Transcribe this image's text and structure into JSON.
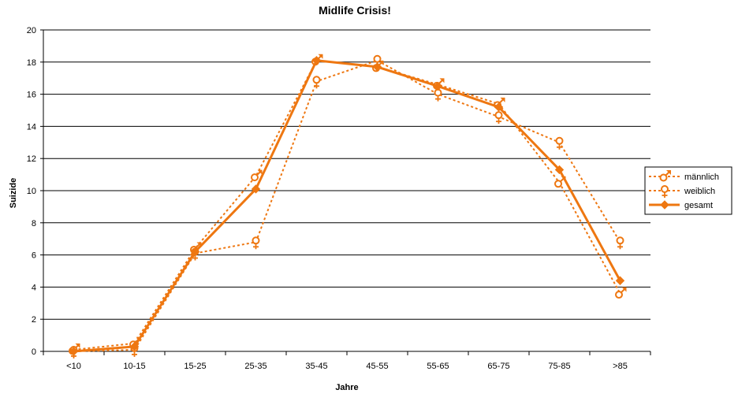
{
  "chart_data": {
    "type": "line",
    "title": "Midlife Crisis!",
    "xlabel": "Jahre",
    "ylabel": "Suizide",
    "categories": [
      "<10",
      "10-15",
      "15-25",
      "25-35",
      "35-45",
      "45-55",
      "55-65",
      "65-75",
      "75-85",
      ">85"
    ],
    "ylim": [
      0,
      20
    ],
    "yticks": [
      0,
      2,
      4,
      6,
      8,
      10,
      12,
      14,
      16,
      18,
      20
    ],
    "grid": true,
    "legend_position": "right",
    "series": [
      {
        "name": "männlich",
        "marker": "male-symbol",
        "line": "dotted",
        "values": [
          0.1,
          0.5,
          6.4,
          10.9,
          18.1,
          17.7,
          16.6,
          15.4,
          10.5,
          3.6
        ]
      },
      {
        "name": "weiblich",
        "marker": "female-symbol",
        "line": "dotted",
        "values": [
          0.0,
          0.1,
          6.1,
          6.8,
          16.8,
          18.1,
          16.0,
          14.6,
          13.0,
          6.8
        ]
      },
      {
        "name": "gesamt",
        "marker": "diamond",
        "line": "solid",
        "values": [
          0.0,
          0.3,
          6.2,
          10.1,
          18.1,
          17.7,
          16.5,
          15.2,
          11.3,
          4.4
        ]
      }
    ],
    "colors": {
      "series": "#ee7711",
      "grid": "#000000",
      "axis": "#000000"
    }
  }
}
